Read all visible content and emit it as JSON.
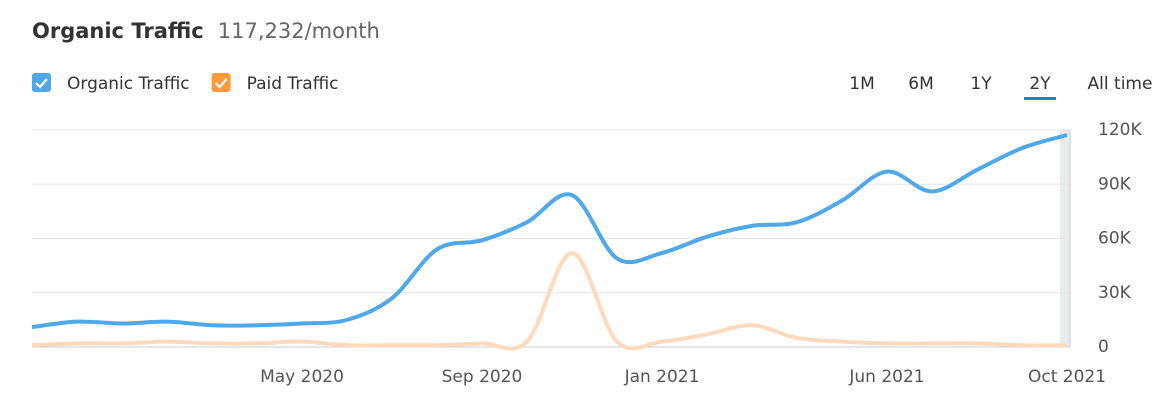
{
  "chart_data": {
    "type": "line",
    "title": "Organic Traffic",
    "subtitle": "117,232/month",
    "ranges": [
      "1M",
      "6M",
      "1Y",
      "2Y",
      "All time"
    ],
    "selected_range": "2Y",
    "categories": [
      null,
      null,
      null,
      null,
      null,
      null,
      "May 2020",
      null,
      null,
      null,
      "Sep 2020",
      null,
      null,
      null,
      "Jan 2021",
      null,
      null,
      null,
      null,
      "Jun 2021",
      null,
      null,
      null,
      "Oct 2021"
    ],
    "series": [
      {
        "name": "Organic Traffic",
        "color": "#4ea8ea",
        "checkbox_color": "#4ea8ea",
        "values": [
          11000,
          14000,
          13000,
          14000,
          12000,
          12000,
          13000,
          15000,
          27000,
          54000,
          59000,
          69000,
          84000,
          49000,
          52000,
          61000,
          67000,
          69000,
          81000,
          97000,
          86000,
          98000,
          110000,
          117232
        ]
      },
      {
        "name": "Paid Traffic",
        "color": "#ffd9bb",
        "checkbox_color": "#ff9a3c",
        "values": [
          1000,
          2000,
          2000,
          3000,
          2000,
          2000,
          3000,
          1000,
          1000,
          1000,
          2000,
          3000,
          52000,
          3000,
          3000,
          7000,
          12000,
          5000,
          3000,
          2000,
          2000,
          2000,
          1000,
          1000
        ]
      }
    ],
    "ylim": [
      0,
      120000
    ],
    "yticks": [
      0,
      {
        "value": 30000,
        "label": "30K"
      },
      {
        "value": 60000,
        "label": "60K"
      },
      {
        "value": 90000,
        "label": "90K"
      },
      {
        "value": 120000,
        "label": "120K"
      }
    ],
    "grid": true
  }
}
